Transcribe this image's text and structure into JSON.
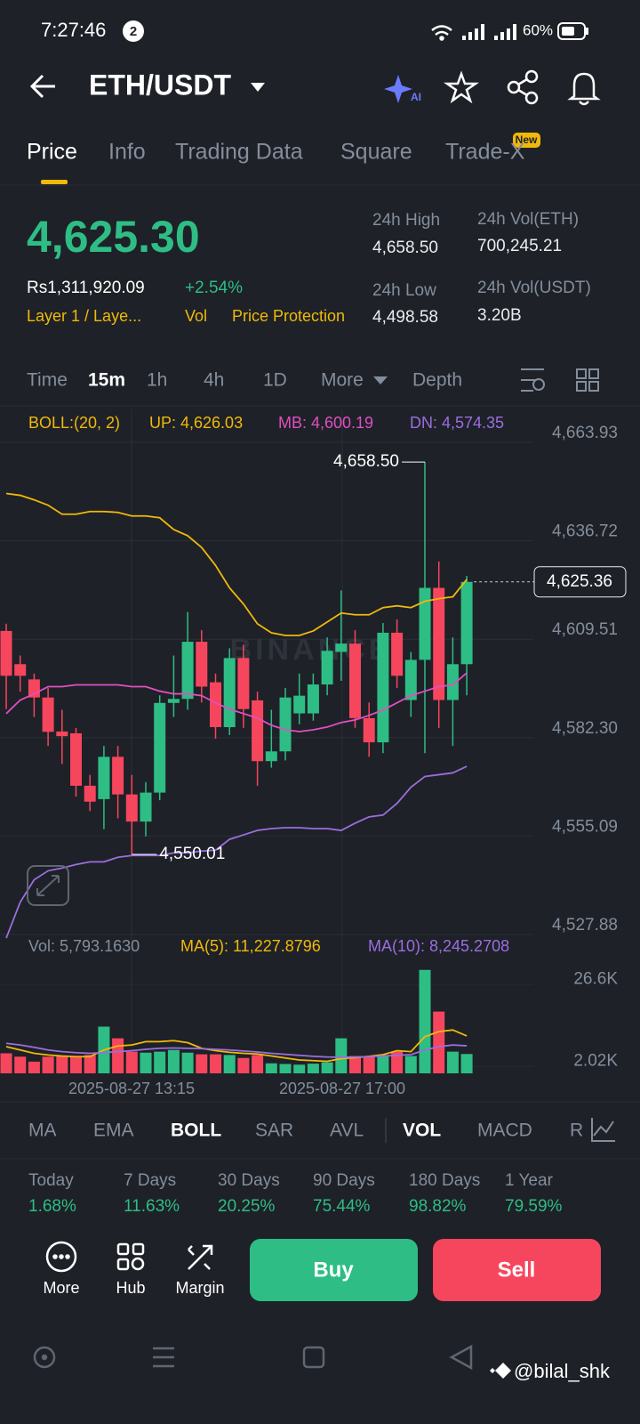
{
  "status_bar": {
    "time": "7:27:46",
    "notifications": "2",
    "battery": "60%"
  },
  "header": {
    "pair": "ETH/USDT",
    "ai": "AI"
  },
  "tabs": [
    "Price",
    "Info",
    "Trading Data",
    "Square",
    "Trade-X"
  ],
  "new_badge": "New",
  "ticker": {
    "price": "4,625.30",
    "local_price": "Rs1,311,920.09",
    "change": "+2.54%",
    "tags": [
      "Layer 1 / Laye...",
      "Vol",
      "Price Protection"
    ],
    "stats": [
      {
        "label": "24h High",
        "value": "4,658.50"
      },
      {
        "label": "24h Vol(ETH)",
        "value": "700,245.21"
      },
      {
        "label": "24h Low",
        "value": "4,498.58"
      },
      {
        "label": "24h Vol(USDT)",
        "value": "3.20B"
      }
    ]
  },
  "intervals": [
    "Time",
    "15m",
    "1h",
    "4h",
    "1D",
    "More",
    "Depth"
  ],
  "chart": {
    "type": "candlestick",
    "up_color": "#2ebd85",
    "down_color": "#f6465d",
    "legend": {
      "boll": "BOLL:(20, 2)",
      "up": "UP: 4,626.03",
      "mb": "MB: 4,600.19",
      "dn": "DN: 4,574.35"
    },
    "boll_colors": {
      "up": "#f0b90b",
      "mb": "#e04fc1",
      "dn": "#9b6ee0"
    },
    "ylim": [
      4527.88,
      4663.93
    ],
    "yticks": [
      {
        "value": 4527.88,
        "label": "4,527.88"
      },
      {
        "value": 4555.09,
        "label": "4,555.09"
      },
      {
        "value": 4582.3,
        "label": "4,582.30"
      },
      {
        "value": 4609.51,
        "label": "4,609.51"
      },
      {
        "value": 4636.72,
        "label": "4,636.72"
      },
      {
        "value": 4663.93,
        "label": "4,663.93"
      }
    ],
    "candles": [
      {
        "o": 4611.8,
        "h": 4613.8,
        "l": 4590.2,
        "c": 4599.4
      },
      {
        "o": 4602.6,
        "h": 4605,
        "l": 4595,
        "c": 4599.4
      },
      {
        "o": 4598.4,
        "h": 4600,
        "l": 4588,
        "c": 4593.4
      },
      {
        "o": 4593.4,
        "h": 4596,
        "l": 4580,
        "c": 4583.9
      },
      {
        "o": 4584,
        "h": 4590,
        "l": 4575,
        "c": 4582.7
      },
      {
        "o": 4583.5,
        "h": 4585,
        "l": 4566,
        "c": 4569
      },
      {
        "o": 4569,
        "h": 4572,
        "l": 4562,
        "c": 4564.6
      },
      {
        "o": 4565.3,
        "h": 4580,
        "l": 4557,
        "c": 4577
      },
      {
        "o": 4577,
        "h": 4580,
        "l": 4560,
        "c": 4566.6
      },
      {
        "o": 4566.6,
        "h": 4572,
        "l": 4550.01,
        "c": 4559.1
      },
      {
        "o": 4559.1,
        "h": 4570,
        "l": 4555,
        "c": 4567.1
      },
      {
        "o": 4567.1,
        "h": 4594,
        "l": 4565,
        "c": 4591.9
      },
      {
        "o": 4591.9,
        "h": 4605,
        "l": 4588,
        "c": 4593
      },
      {
        "o": 4593,
        "h": 4617,
        "l": 4590,
        "c": 4608.8
      },
      {
        "o": 4608.8,
        "h": 4612,
        "l": 4592,
        "c": 4596.4
      },
      {
        "o": 4597.6,
        "h": 4600,
        "l": 4582,
        "c": 4585.2
      },
      {
        "o": 4585.2,
        "h": 4607,
        "l": 4583,
        "c": 4604.3
      },
      {
        "o": 4604.3,
        "h": 4608,
        "l": 4585,
        "c": 4590.2
      },
      {
        "o": 4592.6,
        "h": 4595,
        "l": 4569,
        "c": 4575.8
      },
      {
        "o": 4575.8,
        "h": 4590,
        "l": 4574,
        "c": 4578.5
      },
      {
        "o": 4578.5,
        "h": 4596,
        "l": 4576,
        "c": 4593.4
      },
      {
        "o": 4589,
        "h": 4600,
        "l": 4586,
        "c": 4593.9
      },
      {
        "o": 4589,
        "h": 4600,
        "l": 4587,
        "c": 4597
      },
      {
        "o": 4597,
        "h": 4610,
        "l": 4594,
        "c": 4606.3
      },
      {
        "o": 4606,
        "h": 4623,
        "l": 4598,
        "c": 4608.3
      },
      {
        "o": 4608.3,
        "h": 4612,
        "l": 4585,
        "c": 4587.7
      },
      {
        "o": 4587.7,
        "h": 4592,
        "l": 4577,
        "c": 4581
      },
      {
        "o": 4581,
        "h": 4614,
        "l": 4578,
        "c": 4611.3
      },
      {
        "o": 4611.3,
        "h": 4615,
        "l": 4596,
        "c": 4599.4
      },
      {
        "o": 4592.7,
        "h": 4606,
        "l": 4588,
        "c": 4603.8
      },
      {
        "o": 4603.8,
        "h": 4658.5,
        "l": 4578,
        "c": 4623.7
      },
      {
        "o": 4623.7,
        "h": 4631,
        "l": 4585,
        "c": 4592.7
      },
      {
        "o": 4592.7,
        "h": 4610,
        "l": 4580,
        "c": 4602.6
      },
      {
        "o": 4602.6,
        "h": 4627,
        "l": 4594,
        "c": 4625.36
      }
    ],
    "boll_up": [
      4649.78,
      4649.28,
      4648.04,
      4646.55,
      4644.07,
      4644.07,
      4644.81,
      4644.81,
      4644.56,
      4643.57,
      4643.57,
      4643.07,
      4639.84,
      4638.11,
      4634.88,
      4629.91,
      4623.71,
      4619.24,
      4613.77,
      4611.29,
      4610.55,
      4610.55,
      4611.79,
      4614.27,
      4616.75,
      4616.26,
      4616.26,
      4618.24,
      4618.74,
      4618.24,
      4619.98,
      4620.73,
      4621.22,
      4626.03
    ],
    "boll_mb": [
      4588.94,
      4592.67,
      4594.41,
      4596.39,
      4596.39,
      4596.89,
      4596.89,
      4596.89,
      4596.89,
      4596.39,
      4596.39,
      4595.15,
      4594.41,
      4594.41,
      4593.91,
      4591.92,
      4590.18,
      4588.94,
      4587.7,
      4585.72,
      4584.47,
      4583.98,
      4584.47,
      4585.22,
      4586.46,
      4587.2,
      4588.45,
      4589.94,
      4591.92,
      4593.91,
      4595.15,
      4596.39,
      4596.89,
      4600.19
    ],
    "boll_dn": [
      4526.87,
      4536.8,
      4543.01,
      4545.49,
      4546.24,
      4547.23,
      4547.97,
      4547.97,
      4549.22,
      4549.71,
      4549.71,
      4549.71,
      4550.46,
      4550.46,
      4550.95,
      4551.2,
      4554.18,
      4555.42,
      4556.66,
      4557.16,
      4557.41,
      4557.41,
      4557.16,
      4557.16,
      4556.66,
      4558.65,
      4560.39,
      4560.89,
      4564.11,
      4568.58,
      4571.56,
      4572.06,
      4572.56,
      4574.35
    ],
    "max_label": "4,658.50",
    "min_label": "4,550.01",
    "last_label": "4,625.36",
    "watermark": "BINANCE",
    "x_labels": [
      "2025-08-27 13:15",
      "2025-08-27 17:00"
    ],
    "volume": {
      "legend": {
        "vol": "Vol: 5,793.1630",
        "ma5": "MA(5): 11,227.8796",
        "ma10": "MA(10): 8,245.2708"
      },
      "ma5_color": "#f0b90b",
      "ma10_color": "#9b6ee0",
      "ylim": [
        0,
        32000
      ],
      "yticks": [
        {
          "value": 2020,
          "label": "2.02K"
        },
        {
          "value": 26600,
          "label": "26.6K"
        }
      ],
      "values": [
        6000,
        5000,
        3500,
        5000,
        5200,
        5000,
        5500,
        14000,
        10500,
        6500,
        6200,
        6500,
        7000,
        6200,
        5700,
        5700,
        5500,
        4600,
        5500,
        3000,
        2800,
        2600,
        2900,
        3300,
        10500,
        5200,
        5200,
        5500,
        6500,
        5200,
        31000,
        18500,
        6500,
        5793.163
      ],
      "ma5": [
        8000,
        7000,
        6000,
        5500,
        5200,
        5000,
        5000,
        7000,
        8200,
        8500,
        9500,
        9500,
        9800,
        9200,
        7500,
        6800,
        6300,
        6000,
        5800,
        5200,
        4600,
        4000,
        3800,
        3600,
        4400,
        4700,
        5100,
        5600,
        6800,
        6500,
        11000,
        12500,
        13000,
        11227.8796
      ],
      "ma10": [
        9000,
        8500,
        7800,
        7000,
        6500,
        6200,
        6000,
        6200,
        6500,
        6800,
        7200,
        7500,
        7600,
        7500,
        7400,
        7200,
        7000,
        6700,
        6400,
        6000,
        5700,
        5400,
        5100,
        4900,
        4800,
        4900,
        5000,
        5200,
        5400,
        5600,
        7000,
        8000,
        8500,
        8245.2708
      ]
    }
  },
  "indicators": [
    "MA",
    "EMA",
    "BOLL",
    "SAR",
    "AVL",
    "VOL",
    "MACD",
    "R"
  ],
  "performance": [
    {
      "period": "Today",
      "value": "1.68%"
    },
    {
      "period": "7 Days",
      "value": "11.63%"
    },
    {
      "period": "30 Days",
      "value": "20.25%"
    },
    {
      "period": "90 Days",
      "value": "75.44%"
    },
    {
      "period": "180 Days",
      "value": "98.82%"
    },
    {
      "period": "1 Year",
      "value": "79.59%"
    }
  ],
  "actions": [
    "More",
    "Hub",
    "Margin"
  ],
  "buy": "Buy",
  "sell": "Sell",
  "watermark_user": "@bilal_shk"
}
